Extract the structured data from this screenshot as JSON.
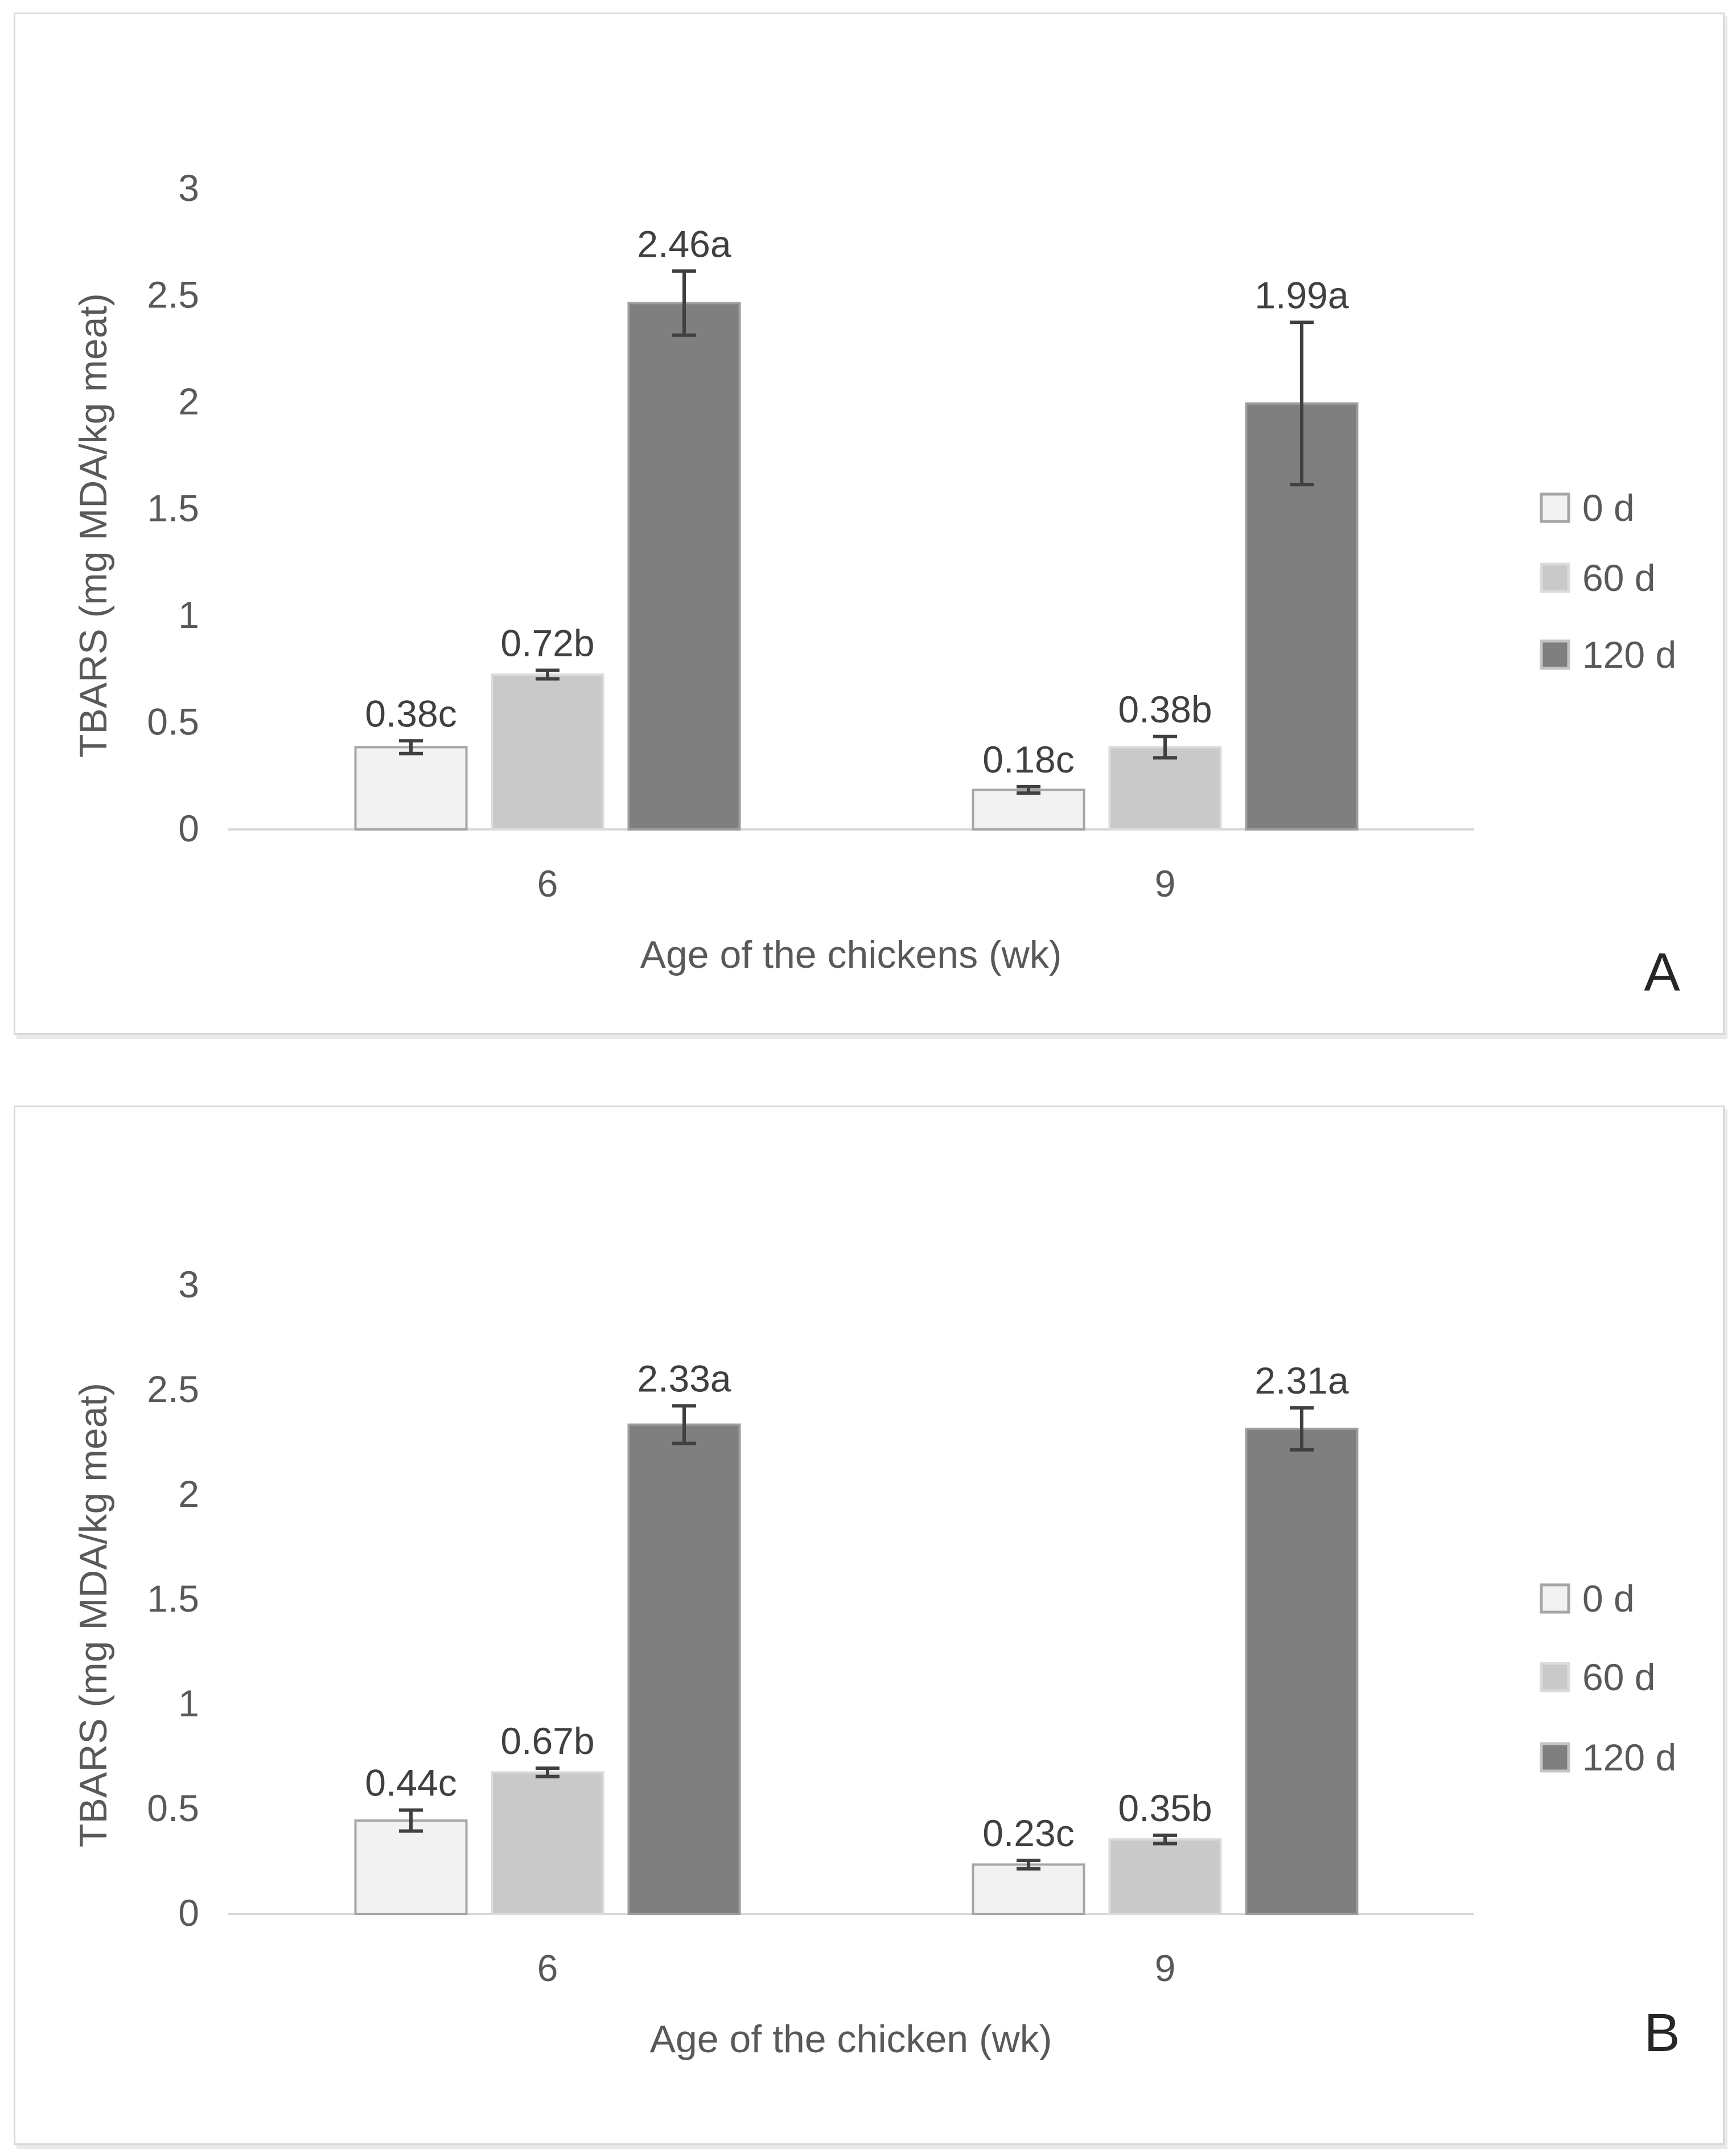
{
  "figure": {
    "background": "#ffffff",
    "panel_letters": [
      "A",
      "B"
    ]
  },
  "styles": {
    "panel_border_color": "#d9d9d9",
    "axis_line_color": "#d9d9d9",
    "tick_text_color": "#595959",
    "axis_title_color": "#595959",
    "data_label_color": "#404040",
    "error_bar_color": "#404040",
    "panel_letter_color": "#262626"
  },
  "chart_data": [
    {
      "type": "bar",
      "panel_label": "A",
      "title": "",
      "xlabel": "Age of the chickens (wk)",
      "ylabel": "TBARS (mg MDA/kg meat)",
      "ylim": [
        0,
        3
      ],
      "yticks": [
        "0",
        "0.5",
        "1",
        "1.5",
        "2",
        "2.5",
        "3"
      ],
      "categories": [
        "6",
        "9"
      ],
      "grid": false,
      "legend_position": "right",
      "series": [
        {
          "name": "0 d",
          "values": [
            0.38,
            0.18
          ],
          "errors": [
            0.03,
            0.015
          ],
          "bar_labels": [
            "0.38c",
            "0.18c"
          ],
          "fill": "#f2f2f2",
          "stroke": "#a6a6a6",
          "swatch_stroke": "#a6a6a6"
        },
        {
          "name": "60 d",
          "values": [
            0.72,
            0.38
          ],
          "errors": [
            0.02,
            0.05
          ],
          "bar_labels": [
            "0.72b",
            "0.38b"
          ],
          "fill": "#c9c9c9",
          "stroke": "#dbdbdb",
          "swatch_stroke": "#dbdbdb"
        },
        {
          "name": "120 d",
          "values": [
            2.46,
            1.99
          ],
          "errors": [
            0.15,
            0.38
          ],
          "bar_labels": [
            "2.46a",
            "1.99a"
          ],
          "fill": "#7f7f7f",
          "stroke": "#9d9d9d",
          "swatch_stroke": "#c4c4c4"
        }
      ]
    },
    {
      "type": "bar",
      "panel_label": "B",
      "title": "",
      "xlabel": "Age of the chicken (wk)",
      "ylabel": "TBARS (mg MDA/kg meat)",
      "ylim": [
        0,
        3
      ],
      "yticks": [
        "0",
        "0.5",
        "1",
        "1.5",
        "2",
        "2.5",
        "3"
      ],
      "categories": [
        "6",
        "9"
      ],
      "grid": false,
      "legend_position": "right",
      "series": [
        {
          "name": "0 d",
          "values": [
            0.44,
            0.23
          ],
          "errors": [
            0.05,
            0.02
          ],
          "bar_labels": [
            "0.44c",
            "0.23c"
          ],
          "fill": "#f2f2f2",
          "stroke": "#a6a6a6",
          "swatch_stroke": "#a6a6a6"
        },
        {
          "name": "60 d",
          "values": [
            0.67,
            0.35
          ],
          "errors": [
            0.02,
            0.02
          ],
          "bar_labels": [
            "0.67b",
            "0.35b"
          ],
          "fill": "#c9c9c9",
          "stroke": "#dbdbdb",
          "swatch_stroke": "#dbdbdb"
        },
        {
          "name": "120 d",
          "values": [
            2.33,
            2.31
          ],
          "errors": [
            0.09,
            0.1
          ],
          "bar_labels": [
            "2.33a",
            "2.31a"
          ],
          "fill": "#7f7f7f",
          "stroke": "#9d9d9d",
          "swatch_stroke": "#c4c4c4"
        }
      ]
    }
  ]
}
